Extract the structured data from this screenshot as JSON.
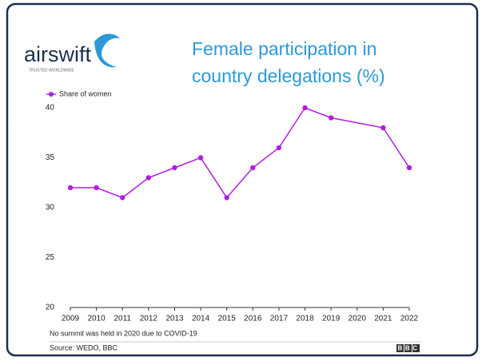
{
  "logo": {
    "name": "airswift",
    "tagline": "TRUSTED WORLDWIDE"
  },
  "chart_data": {
    "type": "line",
    "title": "Female participation in country delegations (%)",
    "x": [
      2009,
      2010,
      2011,
      2012,
      2013,
      2014,
      2015,
      2016,
      2017,
      2018,
      2019,
      2021,
      2022
    ],
    "series": [
      {
        "name": "Share of women",
        "color": "#b01ee0",
        "values": [
          32,
          32,
          31,
          33,
          34,
          35,
          31,
          34,
          36,
          40,
          39,
          38,
          34
        ]
      }
    ],
    "xlim": [
      2009,
      2022
    ],
    "xticks": [
      2009,
      2010,
      2011,
      2012,
      2013,
      2014,
      2015,
      2016,
      2017,
      2018,
      2019,
      2020,
      2021,
      2022
    ],
    "ylim": [
      20,
      40
    ],
    "yticks": [
      20,
      25,
      30,
      35,
      40
    ],
    "grid": false,
    "legend": "top-left",
    "note": "No summit was held in 2020 due to COVID-19"
  },
  "source": "Source: WEDO, BBC",
  "footer_logo": "BBC"
}
